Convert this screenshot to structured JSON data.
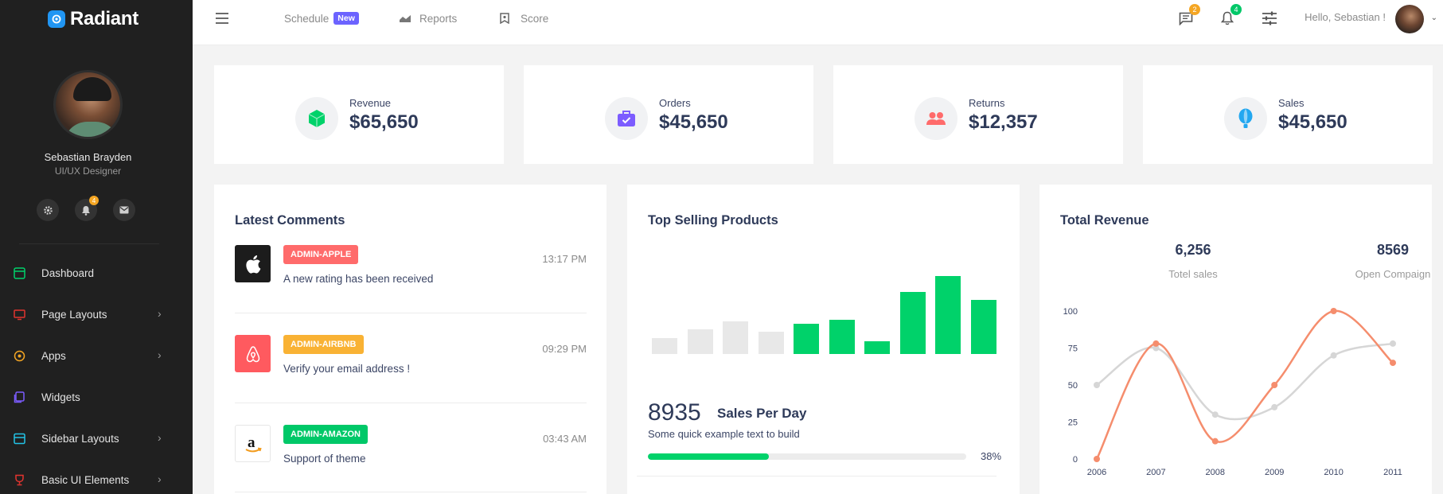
{
  "brand": {
    "name": "Radiant",
    "logo_icon": "rocket-icon",
    "accent": "#2196f3"
  },
  "profile": {
    "name": "Sebastian Brayden",
    "role": "UI/UX Designer",
    "notification_count": "4"
  },
  "sidebar": {
    "items": [
      {
        "label": "Dashboard",
        "icon": "dashboard-icon",
        "color": "#00d26a",
        "has_submenu": false
      },
      {
        "label": "Page Layouts",
        "icon": "monitor-icon",
        "color": "#e3342f",
        "has_submenu": true
      },
      {
        "label": "Apps",
        "icon": "apps-icon",
        "color": "#f5a623",
        "has_submenu": true
      },
      {
        "label": "Widgets",
        "icon": "widgets-icon",
        "color": "#7c5cff",
        "has_submenu": false
      },
      {
        "label": "Sidebar Layouts",
        "icon": "sidebar-icon",
        "color": "#22c3e6",
        "has_submenu": true
      },
      {
        "label": "Basic UI Elements",
        "icon": "trophy-icon",
        "color": "#e3342f",
        "has_submenu": true
      }
    ]
  },
  "header": {
    "links": [
      {
        "label": "Schedule",
        "badge": "New"
      },
      {
        "label": "Reports",
        "badge": ""
      },
      {
        "label": "Score",
        "badge": ""
      }
    ],
    "messages_count": "2",
    "notifications_count": "4",
    "greeting": "Hello, Sebastian !"
  },
  "stats": [
    {
      "label": "Revenue",
      "value": "$65,650",
      "icon": "cube-icon",
      "color": "#00d26a"
    },
    {
      "label": "Orders",
      "value": "$45,650",
      "icon": "briefcase-check-icon",
      "color": "#7c5cff"
    },
    {
      "label": "Returns",
      "value": "$12,357",
      "icon": "users-icon",
      "color": "#ff6b6b"
    },
    {
      "label": "Sales",
      "value": "$45,650",
      "icon": "balloon-icon",
      "color": "#22a7f0"
    }
  ],
  "comments": {
    "title": "Latest Comments",
    "items": [
      {
        "tag": "ADMIN-APPLE",
        "tag_color": "#ff6b6b",
        "message": "A new rating has been received",
        "time": "13:17 PM",
        "logo": "apple-icon"
      },
      {
        "tag": "ADMIN-AIRBNB",
        "tag_color": "#f9b234",
        "message": "Verify your email address !",
        "time": "09:29 PM",
        "logo": "airbnb-icon"
      },
      {
        "tag": "ADMIN-AMAZON",
        "tag_color": "#00c868",
        "message": "Support of theme",
        "time": "03:43 AM",
        "logo": "amazon-icon"
      }
    ]
  },
  "top_selling": {
    "title": "Top Selling Products",
    "sales_number": "8935",
    "sales_label": "Sales Per Day",
    "subtitle": "Some quick example text to build",
    "progress_percent": 38,
    "progress_label": "38%"
  },
  "total_revenue": {
    "title": "Total Revenue",
    "stat1_value": "6,256",
    "stat1_label": "Totel sales",
    "stat2_value": "8569",
    "stat2_label": "Open Compaign"
  },
  "chart_data": [
    {
      "type": "bar",
      "title": "Top Selling Products",
      "categories": [
        "",
        "",
        "",
        "",
        "",
        "",
        "",
        "",
        "",
        ""
      ],
      "values": [
        20,
        31,
        41,
        28,
        38,
        43,
        16,
        78,
        98,
        68
      ],
      "highlight": [
        false,
        false,
        false,
        false,
        true,
        true,
        true,
        true,
        true,
        true
      ],
      "colors": {
        "highlight": "#00d26a",
        "muted": "#e8e8e8"
      },
      "ylim": [
        0,
        100
      ],
      "grid": false
    },
    {
      "type": "line",
      "title": "Total Revenue",
      "x": [
        2006,
        2007,
        2008,
        2009,
        2010,
        2011
      ],
      "series": [
        {
          "values": [
            0,
            78,
            12,
            50,
            100,
            65
          ],
          "color": "#f58d6d"
        },
        {
          "values": [
            50,
            75,
            30,
            35,
            70,
            78
          ],
          "color": "#d6d6d6"
        }
      ],
      "yticks": [
        0,
        25,
        50,
        75,
        100
      ],
      "ylim": [
        0,
        100
      ],
      "grid": false
    }
  ]
}
